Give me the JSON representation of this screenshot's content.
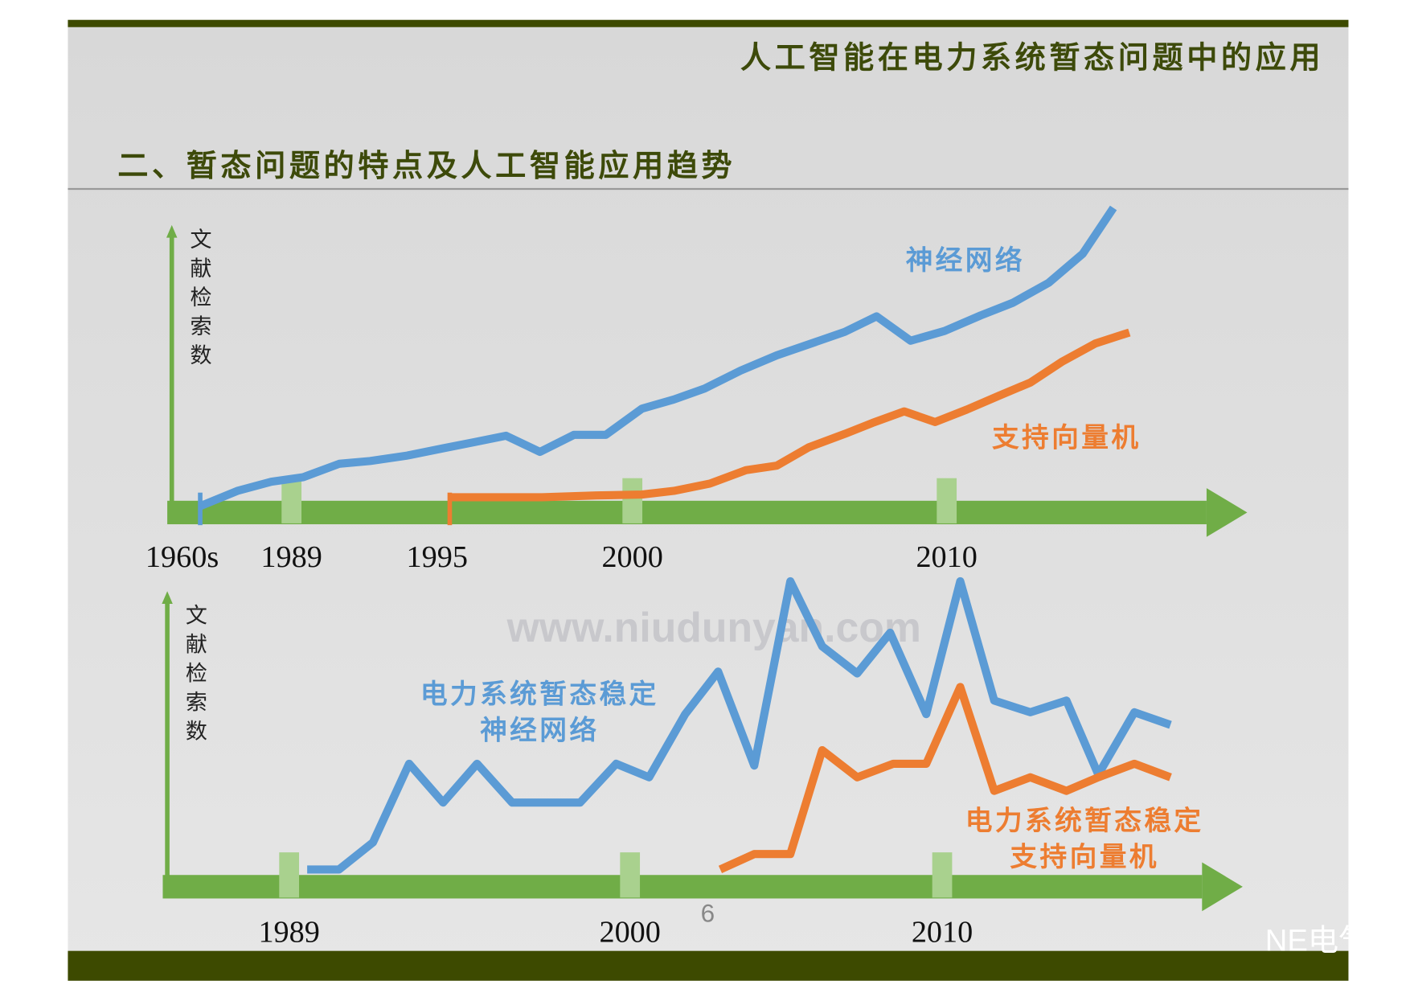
{
  "header": {
    "title": "人工智能在电力系统暂态问题中的应用",
    "subtitle": "二、暂态问题的特点及人工智能应用趋势",
    "page_number": "6",
    "watermark": "www.niudunyan.com",
    "brand": "NE电气"
  },
  "chart_data": [
    {
      "type": "line",
      "ylabel": "文献检索数",
      "xlim": [
        0,
        100
      ],
      "ylim": [
        0,
        100
      ],
      "xticks": [
        {
          "value": 3.1,
          "label": "1960s"
        },
        {
          "value": 11.7,
          "label": "1989"
        },
        {
          "value": 26.6,
          "label": "1995"
        },
        {
          "value": 43.8,
          "label": "2000"
        },
        {
          "value": 73.4,
          "label": "2010"
        }
      ],
      "series": [
        {
          "name": [
            "神经网络"
          ],
          "color": "#5b9bd5",
          "x": [
            3.1,
            6.6,
            9.8,
            12.8,
            16.2,
            19.1,
            22.6,
            26.0,
            28.9,
            31.9,
            35.1,
            38.3,
            41.3,
            44.7,
            47.7,
            50.6,
            54.0,
            57.4,
            60.4,
            63.8,
            66.8,
            70.0,
            73.2,
            76.6,
            79.6,
            83.0,
            86.2,
            89.1
          ],
          "values": [
            2.1,
            7.1,
            10.1,
            11.6,
            16.0,
            16.9,
            18.7,
            21.1,
            23.1,
            25.2,
            19.9,
            25.5,
            25.5,
            34.1,
            37.1,
            40.7,
            46.6,
            51.6,
            55.2,
            59.3,
            64.4,
            56.4,
            59.6,
            64.7,
            68.8,
            75.4,
            84.9,
            100
          ]
        },
        {
          "name": [
            "支持向量机"
          ],
          "color": "#ed7d31",
          "x": [
            26.6,
            30.2,
            35.3,
            40.4,
            44.7,
            47.7,
            51.1,
            54.5,
            57.4,
            60.4,
            63.8,
            66.4,
            69.4,
            72.3,
            75.3,
            78.3,
            81.3,
            84.3,
            87.4,
            90.6
          ],
          "values": [
            5.0,
            5.0,
            5.0,
            5.6,
            5.9,
            7.1,
            9.5,
            13.9,
            15.4,
            21.4,
            25.8,
            29.4,
            33.2,
            29.7,
            33.8,
            38.3,
            42.7,
            49.6,
            55.5,
            59.1
          ]
        }
      ]
    },
    {
      "type": "line",
      "ylabel": "文献检索数",
      "xlim": [
        0,
        100
      ],
      "ylim": [
        0,
        100
      ],
      "xticks": [
        {
          "value": 11.9,
          "label": "1989"
        },
        {
          "value": 44.0,
          "label": "2000"
        },
        {
          "value": 73.4,
          "label": "2010"
        }
      ],
      "series": [
        {
          "name": [
            "电力系统暂态稳定",
            "神经网络"
          ],
          "color": "#5b9bd5",
          "x": [
            13.6,
            16.6,
            19.8,
            23.2,
            26.4,
            29.6,
            32.9,
            36.2,
            39.3,
            42.7,
            45.8,
            49.2,
            52.3,
            55.7,
            59.1,
            62.1,
            65.4,
            68.5,
            71.9,
            75.1,
            78.3,
            81.7,
            85.1,
            88.1,
            91.5,
            94.9
          ],
          "values": [
            5.6,
            5.6,
            14.4,
            39.9,
            27.3,
            39.9,
            27.3,
            27.3,
            27.3,
            39.9,
            35.5,
            56.0,
            69.8,
            39.3,
            99.1,
            78.0,
            69.2,
            82.4,
            56.0,
            99.1,
            60.4,
            56.6,
            60.4,
            36.4,
            56.6,
            52.5
          ]
        },
        {
          "name": [
            "电力系统暂态稳定",
            "支持向量机"
          ],
          "color": "#ed7d31",
          "x": [
            52.5,
            55.7,
            59.1,
            62.1,
            65.4,
            68.8,
            71.9,
            75.1,
            78.3,
            81.7,
            85.1,
            88.1,
            91.5,
            94.9
          ],
          "values": [
            5.6,
            10.6,
            10.6,
            44.3,
            35.5,
            39.9,
            39.9,
            64.8,
            31.1,
            35.5,
            31.1,
            35.5,
            39.9,
            35.5
          ]
        }
      ]
    }
  ]
}
